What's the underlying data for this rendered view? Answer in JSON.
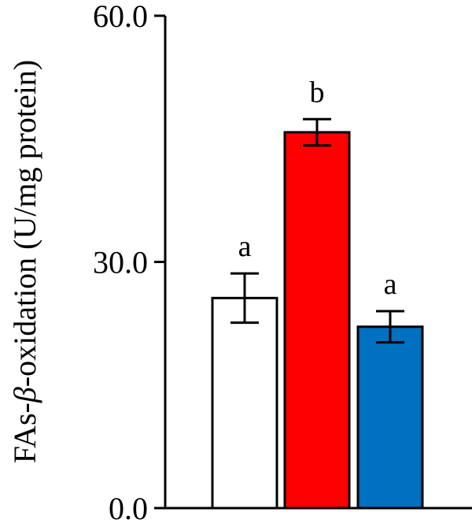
{
  "chart_data": {
    "type": "bar",
    "ylabel_prefix": "FAs-",
    "ylabel_symbol": "β",
    "ylabel_suffix": "-oxidation (U/mg protein)",
    "ylim": [
      0,
      60
    ],
    "y_ticks": [
      "0.0",
      "30.0",
      "60.0"
    ],
    "y_tick_values": [
      0,
      30,
      60
    ],
    "grid": false,
    "legend": "none",
    "categories": [
      "",
      "",
      ""
    ],
    "values": [
      25.6,
      45.8,
      22.1
    ],
    "errors": [
      3.0,
      1.6,
      1.9
    ],
    "significance": [
      "a",
      "b",
      "a"
    ],
    "colors": [
      "#ffffff",
      "#ff0000",
      "#0070c0"
    ]
  }
}
